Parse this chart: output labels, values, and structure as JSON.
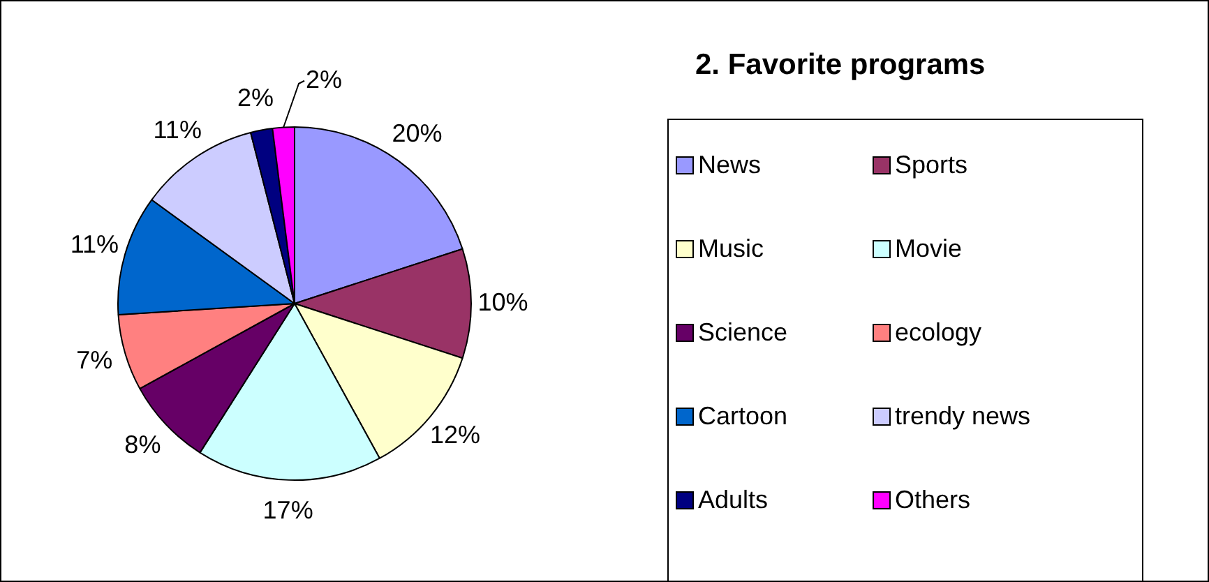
{
  "chart_data": {
    "type": "pie",
    "title": "2. Favorite programs",
    "categories": [
      "News",
      "Sports",
      "Music",
      "Movie",
      "Science",
      "ecology",
      "Cartoon",
      "trendy news",
      "Adults",
      "Others"
    ],
    "values": [
      20,
      10,
      12,
      17,
      8,
      7,
      11,
      11,
      2,
      2
    ],
    "value_labels": [
      "20%",
      "10%",
      "12%",
      "17%",
      "8%",
      "7%",
      "11%",
      "11%",
      "2%",
      "2%"
    ],
    "colors": [
      "#9999ff",
      "#993366",
      "#ffffcc",
      "#ccffff",
      "#660066",
      "#ff8080",
      "#0066cc",
      "#ccccff",
      "#000080",
      "#ff00ff"
    ],
    "legend": "right"
  }
}
